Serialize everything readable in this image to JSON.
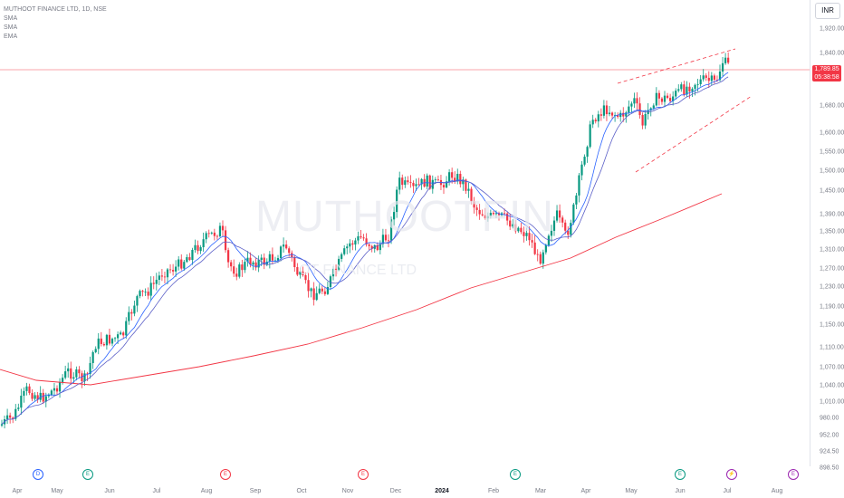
{
  "legend": {
    "symbol": "MUTHOOT FINANCE LTD, 1D, NSE",
    "ind1": "SMA",
    "ind2": "SMA",
    "ind3": "EMA"
  },
  "currency": "INR",
  "watermark": "MUTHOOTFIN",
  "watermark2": "OT FINANCE LTD",
  "last_price": "1,789.85",
  "countdown": "05:38:58",
  "y_axis_labels": [
    "1,920.00",
    "1,840.00",
    "1,680.00",
    "1,600.00",
    "1,550.00",
    "1,500.00",
    "1,450.00",
    "1,390.00",
    "1,350.00",
    "1,310.00",
    "1,270.00",
    "1,230.00",
    "1,190.00",
    "1,150.00",
    "1,110.00",
    "1,070.00",
    "1,040.00",
    "1,010.00",
    "980.00",
    "952.00",
    "924.50",
    "898.50"
  ],
  "x_axis_labels": [
    "Apr",
    "May",
    "Jun",
    "Jul",
    "Aug",
    "Sep",
    "Oct",
    "Nov",
    "Dec",
    "2024",
    "Feb",
    "Mar",
    "Apr",
    "May",
    "Jun",
    "Jul",
    "Aug"
  ],
  "events": [
    {
      "glyph": "D",
      "color": "#2962ff"
    },
    {
      "glyph": "E",
      "color": "#089981"
    },
    {
      "glyph": "E",
      "color": "#f23645"
    },
    {
      "glyph": "E",
      "color": "#f23645"
    },
    {
      "glyph": "E",
      "color": "#089981"
    },
    {
      "glyph": "E",
      "color": "#089981"
    },
    {
      "glyph": "⚡",
      "color": "#9c27b0"
    },
    {
      "glyph": "E",
      "color": "#9c27b0"
    }
  ],
  "colors": {
    "up": "#089981",
    "down": "#f23645",
    "sma_fast": "#2962ff",
    "sma_slow": "#f23645",
    "ema": "#5b5fc7"
  },
  "chart_data": {
    "type": "candlestick",
    "key_closes_approx": [
      {
        "x": "Apr",
        "y": 975
      },
      {
        "x": "May",
        "y": 1040
      },
      {
        "x": "Jun",
        "y": 1075
      },
      {
        "x": "Jul",
        "y": 1230
      },
      {
        "x": "Aug",
        "y": 1350
      },
      {
        "x": "Sep",
        "y": 1280
      },
      {
        "x": "Oct",
        "y": 1210
      },
      {
        "x": "Nov",
        "y": 1320
      },
      {
        "x": "Dec",
        "y": 1460
      },
      {
        "x": "2024",
        "y": 1480
      },
      {
        "x": "Feb",
        "y": 1400
      },
      {
        "x": "Mar",
        "y": 1290
      },
      {
        "x": "Apr",
        "y": 1660
      },
      {
        "x": "May",
        "y": 1720
      },
      {
        "x": "Jun",
        "y": 1740
      },
      {
        "x": "Jul",
        "y": 1790
      }
    ],
    "ylim": [
      880,
      1940
    ]
  }
}
